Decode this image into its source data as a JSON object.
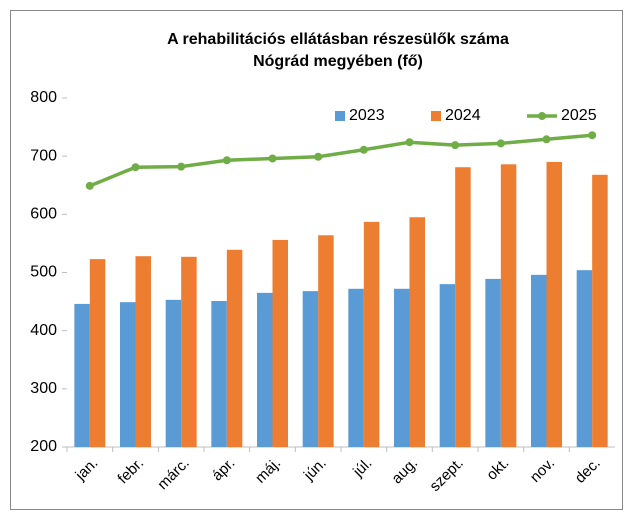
{
  "chart_data": {
    "type": "bar",
    "title": [
      "A rehabilitációs ellátásban részesülők száma",
      "Nógrád megyében (fő)"
    ],
    "categories": [
      "jan.",
      "febr.",
      "márc.",
      "ápr.",
      "máj.",
      "jún.",
      "júl.",
      "aug.",
      "szept.",
      "okt.",
      "nov.",
      "dec."
    ],
    "series": [
      {
        "name": "2023",
        "color": "#5b9bd5",
        "type": "bar",
        "values": [
          446,
          449,
          453,
          451,
          465,
          468,
          472,
          472,
          480,
          489,
          496,
          504
        ]
      },
      {
        "name": "2024",
        "color": "#ed7d31",
        "type": "bar",
        "values": [
          523,
          528,
          527,
          539,
          556,
          564,
          587,
          595,
          681,
          686,
          690,
          668
        ]
      },
      {
        "name": "2025",
        "color": "#70ad47",
        "type": "line",
        "values": [
          649,
          681,
          682,
          693,
          696,
          699,
          711,
          724,
          719,
          722,
          729,
          736
        ]
      }
    ],
    "ylim": [
      200,
      800
    ],
    "yticks": [
      200,
      300,
      400,
      500,
      600,
      700,
      800
    ],
    "grid": false,
    "legend": "top-right"
  }
}
